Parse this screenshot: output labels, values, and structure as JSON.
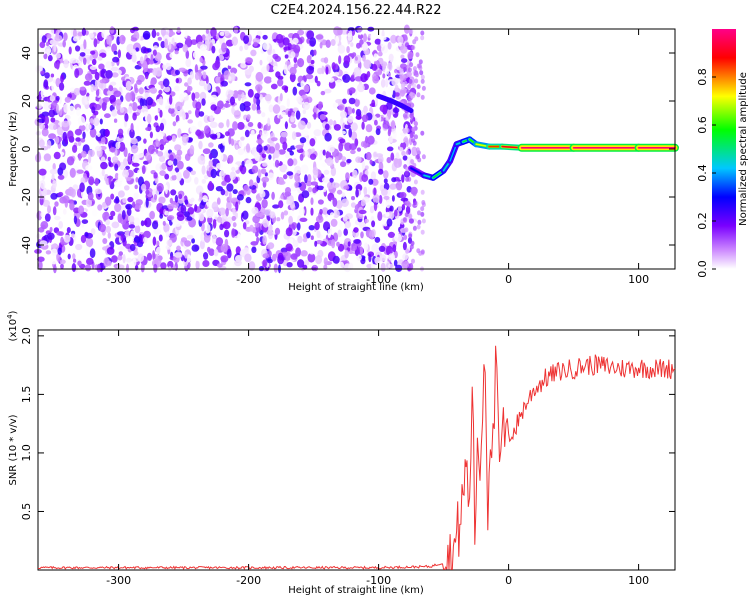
{
  "title": "C2E4.2024.156.22.44.R22",
  "chart_data": [
    {
      "type": "heatmap",
      "title": "C2E4.2024.156.22.44.R22",
      "xlabel": "Height of straight line (km)",
      "ylabel": "Frequency (Hz)",
      "xlim": [
        -362,
        128
      ],
      "ylim": [
        -50,
        50
      ],
      "x_ticks": [
        -300,
        -200,
        -100,
        0,
        100
      ],
      "y_ticks": [
        -40,
        -20,
        0,
        20,
        40
      ],
      "colorbar": {
        "label": "Normalized spectral amplitude",
        "range": [
          0.0,
          1.0
        ],
        "ticks": [
          0.0,
          0.2,
          0.4,
          0.6,
          0.8
        ],
        "colormap": [
          "#ffffff",
          "#cc88ff",
          "#7a00ff",
          "#0000ff",
          "#00c8ff",
          "#00ff00",
          "#ffff00",
          "#ff0000",
          "#ff0088"
        ]
      },
      "noise_region": {
        "x_range": [
          -362,
          -72
        ],
        "amplitude_range": [
          0.0,
          0.25
        ]
      },
      "signal_track": [
        {
          "x": -75,
          "y": -8,
          "amp": 0.3
        },
        {
          "x": -65,
          "y": -11,
          "amp": 0.45
        },
        {
          "x": -58,
          "y": -12,
          "amp": 0.55
        },
        {
          "x": -50,
          "y": -9,
          "amp": 0.45
        },
        {
          "x": -45,
          "y": -5,
          "amp": 0.4
        },
        {
          "x": -40,
          "y": 2,
          "amp": 0.45
        },
        {
          "x": -35,
          "y": 3,
          "amp": 0.55
        },
        {
          "x": -30,
          "y": 4,
          "amp": 0.6
        },
        {
          "x": -25,
          "y": 2,
          "amp": 0.7
        },
        {
          "x": -15,
          "y": 1,
          "amp": 0.85
        },
        {
          "x": -5,
          "y": 1,
          "amp": 0.9
        },
        {
          "x": 10,
          "y": 0.5,
          "amp": 0.98
        },
        {
          "x": 50,
          "y": 0.5,
          "amp": 0.98
        },
        {
          "x": 100,
          "y": 0.5,
          "amp": 0.98
        },
        {
          "x": 128,
          "y": 0.5,
          "amp": 0.98
        }
      ],
      "upper_streak": [
        {
          "x": -100,
          "y": 22
        },
        {
          "x": -90,
          "y": 20
        },
        {
          "x": -82,
          "y": 18
        },
        {
          "x": -75,
          "y": 16
        }
      ]
    },
    {
      "type": "line",
      "xlabel": "Height of straight line (km)",
      "ylabel": "SNR (10 * v/v)",
      "y_multiplier": "(x10⁴)",
      "y_multiplier_base": "(x10",
      "y_multiplier_exp": "4",
      "y_multiplier_close": ")",
      "xlim": [
        -362,
        128
      ],
      "ylim": [
        0,
        2.05
      ],
      "x_ticks": [
        -300,
        -200,
        -100,
        0,
        100
      ],
      "y_ticks": [
        0.5,
        1.0,
        1.5,
        2.0
      ],
      "y_tick_labels": [
        "0.5",
        "1.0",
        "1.5",
        "2.0"
      ],
      "color": "#ee3333",
      "series": [
        {
          "x": [
            -362,
            -300,
            -200,
            -100,
            -60,
            -45,
            -40,
            -35,
            -32,
            -30,
            -28,
            -26,
            -24,
            -22,
            -20,
            -18,
            -16,
            -14,
            -12,
            -10,
            -8,
            -6,
            -4,
            -2,
            0,
            5,
            10,
            15,
            20,
            30,
            40,
            50,
            60,
            70,
            80,
            90,
            100,
            110,
            120,
            128
          ],
          "y": [
            0.02,
            0.02,
            0.02,
            0.02,
            0.03,
            0.08,
            0.25,
            0.6,
            1.0,
            0.4,
            1.75,
            0.2,
            1.2,
            0.8,
            1.5,
            1.9,
            0.5,
            1.3,
            1.0,
            1.7,
            1.2,
            0.8,
            1.3,
            1.0,
            1.15,
            1.2,
            1.35,
            1.45,
            1.55,
            1.65,
            1.7,
            1.72,
            1.75,
            1.75,
            1.73,
            1.72,
            1.73,
            1.72,
            1.72,
            1.72
          ]
        }
      ]
    }
  ]
}
